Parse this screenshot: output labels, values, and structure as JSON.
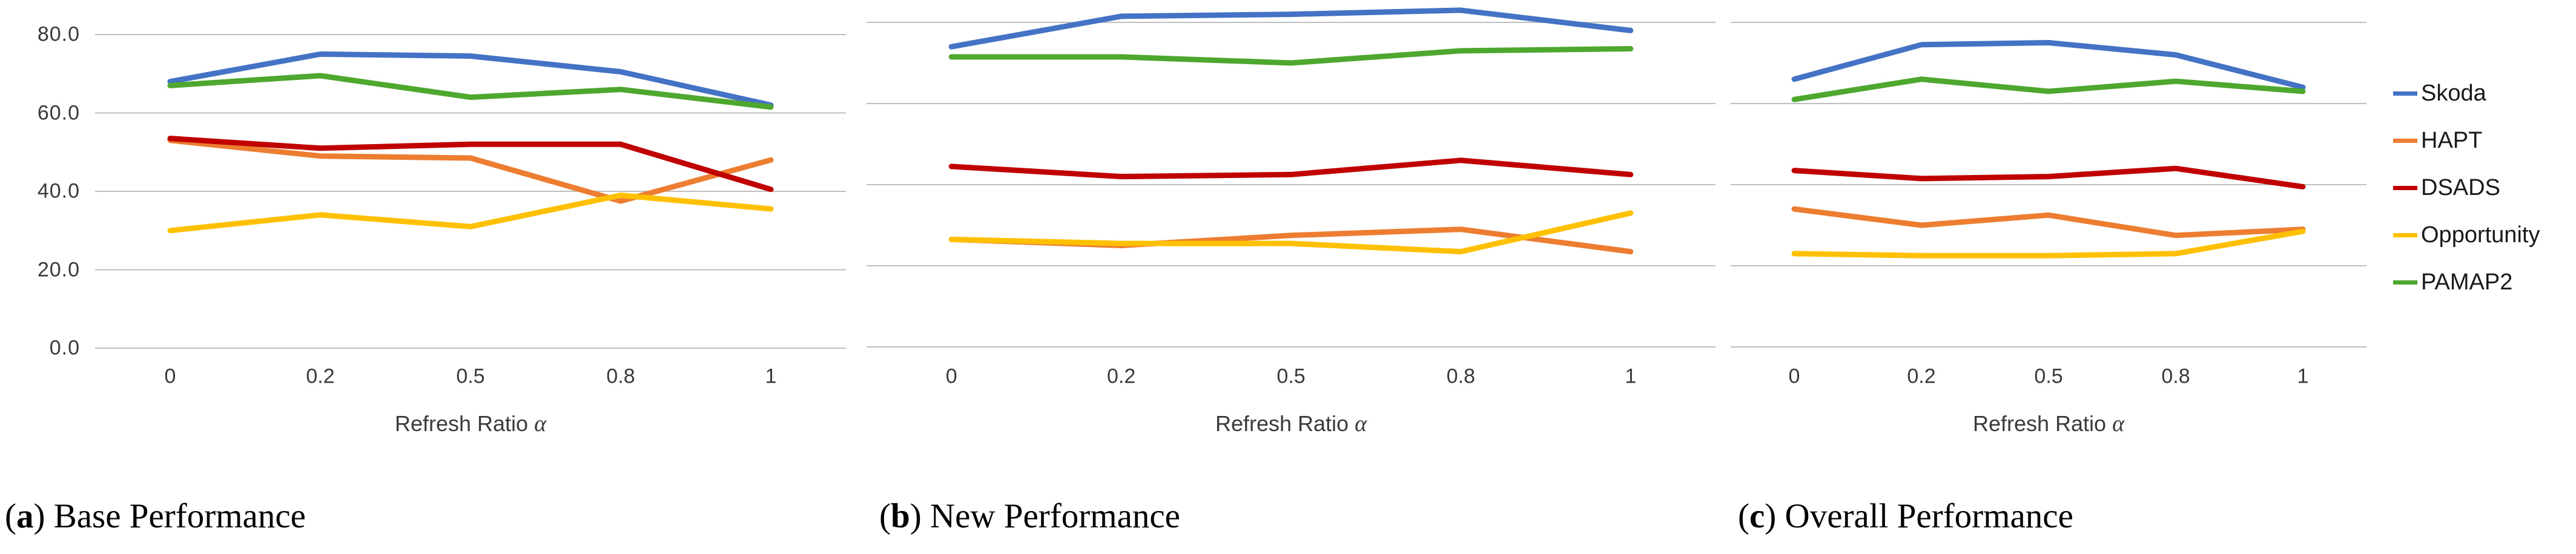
{
  "page": {
    "background": "#ffffff"
  },
  "colors": {
    "skoda": "#4472C4",
    "hapt": "#ED7D31",
    "dsads": "#C00000",
    "opportunity": "#FFC000",
    "pamap2": "#4EA72E",
    "gridline": "#BFBFBF",
    "tick_text": "#3a3a3a",
    "caption_text": "#000000"
  },
  "axis": {
    "x_label_prefix": "Refresh Ratio ",
    "x_label_alpha": "α",
    "y_ticks": [
      "80.0",
      "60.0",
      "40.0",
      "20.0",
      "0.0"
    ],
    "x_ticks": [
      "0",
      "0.2",
      "0.5",
      "0.8",
      "1"
    ]
  },
  "legend": {
    "position": "right",
    "entries": [
      {
        "label": "Skoda",
        "color": "#4472C4"
      },
      {
        "label": "HAPT",
        "color": "#ED7D31"
      },
      {
        "label": "DSADS",
        "color": "#C00000"
      },
      {
        "label": "Opportunity",
        "color": "#FFC000"
      },
      {
        "label": "PAMAP2",
        "color": "#4EA72E"
      }
    ]
  },
  "chart_data": [
    {
      "type": "line",
      "panel": "a",
      "caption_letter": "a",
      "caption": "Base Performance",
      "xlabel": "Refresh Ratio α",
      "x_categories": [
        "0",
        "0.2",
        "0.5",
        "0.8",
        "1"
      ],
      "ylim": [
        0,
        80
      ],
      "grid_interval": 20,
      "grid": true,
      "legend_shown": false,
      "y_axis_labels_shown": true,
      "series": [
        {
          "name": "Skoda",
          "color": "#4472C4",
          "values": [
            68,
            75,
            74.5,
            70.5,
            62
          ]
        },
        {
          "name": "HAPT",
          "color": "#ED7D31",
          "values": [
            53,
            49,
            48.5,
            37.5,
            48
          ]
        },
        {
          "name": "DSADS",
          "color": "#C00000",
          "values": [
            53.5,
            51,
            52,
            52,
            40.5
          ]
        },
        {
          "name": "Opportunity",
          "color": "#FFC000",
          "values": [
            30,
            34,
            31,
            39,
            35.5
          ]
        },
        {
          "name": "PAMAP2",
          "color": "#4EA72E",
          "values": [
            67,
            69.5,
            64,
            66,
            61.5
          ]
        }
      ]
    },
    {
      "type": "line",
      "panel": "b",
      "caption_letter": "b",
      "caption": "New Performance",
      "xlabel": "Refresh Ratio α",
      "x_categories": [
        "0",
        "0.2",
        "0.5",
        "0.8",
        "1"
      ],
      "ylim": [
        0,
        80
      ],
      "grid_interval": 20,
      "grid": true,
      "legend_shown": false,
      "y_axis_labels_shown": false,
      "series": [
        {
          "name": "Skoda",
          "color": "#4472C4",
          "values": [
            74,
            81.5,
            82,
            83,
            78
          ]
        },
        {
          "name": "HAPT",
          "color": "#ED7D31",
          "values": [
            26.5,
            25,
            27.5,
            29,
            23.5
          ]
        },
        {
          "name": "DSADS",
          "color": "#C00000",
          "values": [
            44.5,
            42,
            42.5,
            46,
            42.5
          ]
        },
        {
          "name": "Opportunity",
          "color": "#FFC000",
          "values": [
            26.5,
            25.5,
            25.5,
            23.5,
            33
          ]
        },
        {
          "name": "PAMAP2",
          "color": "#4EA72E",
          "values": [
            71.5,
            71.5,
            70,
            73,
            73.5
          ]
        }
      ]
    },
    {
      "type": "line",
      "panel": "c",
      "caption_letter": "c",
      "caption": "Overall Performance",
      "xlabel": "Refresh Ratio α",
      "x_categories": [
        "0",
        "0.2",
        "0.5",
        "0.8",
        "1"
      ],
      "ylim": [
        0,
        80
      ],
      "grid_interval": 20,
      "grid": true,
      "legend_shown": true,
      "y_axis_labels_shown": false,
      "series": [
        {
          "name": "Skoda",
          "color": "#4472C4",
          "values": [
            66,
            74.5,
            75,
            72,
            64
          ]
        },
        {
          "name": "HAPT",
          "color": "#ED7D31",
          "values": [
            34,
            30,
            32.5,
            27.5,
            29
          ]
        },
        {
          "name": "DSADS",
          "color": "#C00000",
          "values": [
            43.5,
            41.5,
            42,
            44,
            39.5
          ]
        },
        {
          "name": "Opportunity",
          "color": "#FFC000",
          "values": [
            23,
            22.5,
            22.5,
            23,
            28.5
          ]
        },
        {
          "name": "PAMAP2",
          "color": "#4EA72E",
          "values": [
            61,
            66,
            63,
            65.5,
            63
          ]
        }
      ]
    }
  ]
}
